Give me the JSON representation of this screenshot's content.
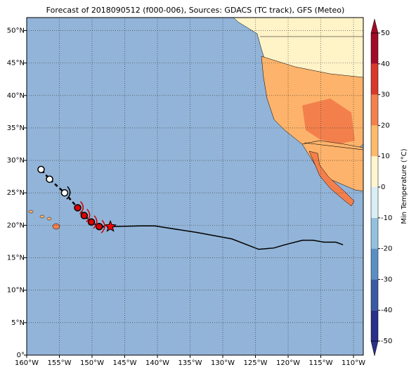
{
  "chart_data": {
    "type": "map",
    "title": "Forecast of 2018090512 (f000-006), Sources: GDACS (TC track), GFS (Meteo)",
    "xlim": [
      -160,
      -108.5
    ],
    "ylim": [
      0,
      52
    ],
    "xticks": [
      {
        "value": -160,
        "label": "160°W"
      },
      {
        "value": -155,
        "label": "155°W"
      },
      {
        "value": -150,
        "label": "150°W"
      },
      {
        "value": -145,
        "label": "145°W"
      },
      {
        "value": -140,
        "label": "140°W"
      },
      {
        "value": -135,
        "label": "135°W"
      },
      {
        "value": -130,
        "label": "130°W"
      },
      {
        "value": -125,
        "label": "125°W"
      },
      {
        "value": -120,
        "label": "120°W"
      },
      {
        "value": -115,
        "label": "115°W"
      },
      {
        "value": -110,
        "label": "110°W"
      }
    ],
    "yticks": [
      {
        "value": 0,
        "label": "0°"
      },
      {
        "value": 5,
        "label": "5°N"
      },
      {
        "value": 10,
        "label": "10°N"
      },
      {
        "value": 15,
        "label": "15°N"
      },
      {
        "value": 20,
        "label": "20°N"
      },
      {
        "value": 25,
        "label": "25°N"
      },
      {
        "value": 30,
        "label": "30°N"
      },
      {
        "value": 35,
        "label": "35°N"
      },
      {
        "value": 40,
        "label": "40°N"
      },
      {
        "value": 45,
        "label": "45°N"
      },
      {
        "value": 50,
        "label": "50°N"
      }
    ],
    "grid": true,
    "ocean_color": "#92b4d8",
    "track": {
      "lon": [
        -147.2,
        -142.6,
        -140.4,
        -134,
        -128.6,
        -124.5,
        -122.2,
        -120.5,
        -117.8,
        -116.2,
        -114.5,
        -112.7,
        -111.6
      ],
      "lat": [
        19.8,
        19.9,
        19.9,
        18.9,
        17.9,
        16.3,
        16.5,
        17.0,
        17.7,
        17.7,
        17.4,
        17.4,
        17.0
      ]
    },
    "forecast": {
      "lon": [
        -147.2,
        -148.9,
        -150.1,
        -151.2,
        -152.2,
        -154.2,
        -156.5,
        -157.8
      ],
      "lat": [
        19.8,
        19.8,
        20.5,
        21.5,
        22.7,
        25.0,
        27.1,
        28.6
      ],
      "colors": [
        "#ff0000",
        "#e00000",
        "#e00000",
        "#e00000",
        "#e00000",
        "#ffffff",
        "#ffffff",
        "#ffffff"
      ]
    },
    "colorbar": {
      "label": "Min Temperature (°C)",
      "lim": [
        -50,
        50
      ],
      "ticks": [
        -50,
        -40,
        -30,
        -20,
        -10,
        0,
        10,
        20,
        30,
        40,
        50
      ],
      "colors": [
        "#2a2f8a",
        "#3b5aa6",
        "#5b8fc4",
        "#93c1dd",
        "#d9eff5",
        "#fff6cf",
        "#fdba6c",
        "#f3814d",
        "#d8392b",
        "#a10b26"
      ]
    }
  }
}
